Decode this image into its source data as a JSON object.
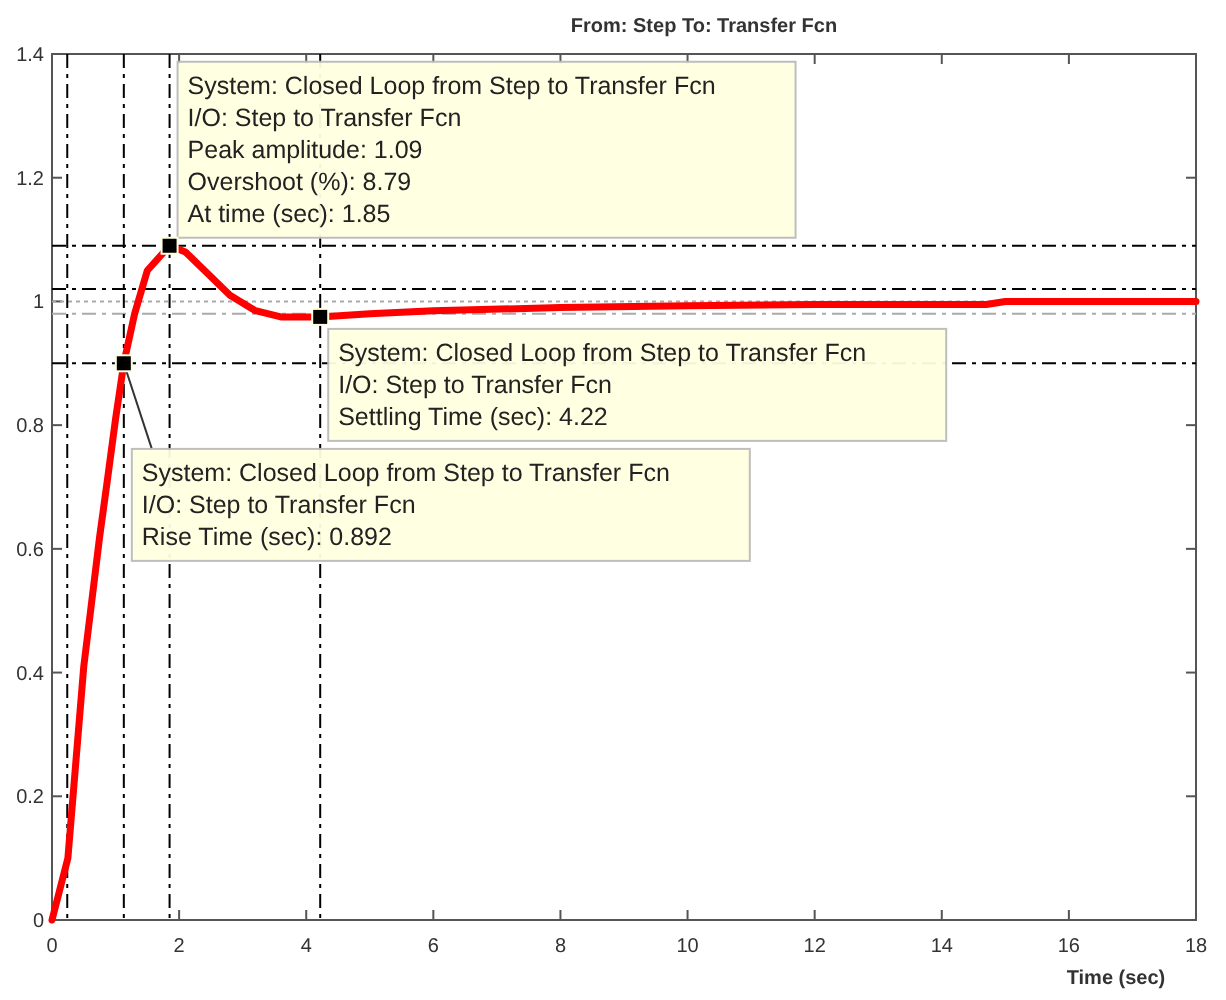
{
  "chart_data": {
    "type": "line",
    "title": "From: Step  To: Transfer Fcn",
    "xlabel": "Time (sec)",
    "series": [
      {
        "color": "#ff0000",
        "x": [
          0,
          0.25,
          0.5,
          0.75,
          0.87,
          1.0,
          1.13,
          1.3,
          1.5,
          1.85,
          2.1,
          2.4,
          2.8,
          3.2,
          3.6,
          4.22,
          5,
          6,
          8,
          10,
          12,
          14.7,
          15,
          18
        ],
        "values": [
          0,
          0.1,
          0.41,
          0.62,
          0.71,
          0.81,
          0.9,
          0.98,
          1.05,
          1.09,
          1.08,
          1.05,
          1.01,
          0.985,
          0.975,
          0.975,
          0.98,
          0.985,
          0.99,
          0.993,
          0.995,
          0.995,
          1.0,
          1.0
        ]
      }
    ],
    "xlim": [
      0,
      18
    ],
    "xticks": [
      0,
      2,
      4,
      6,
      8,
      10,
      12,
      14,
      16,
      18
    ],
    "ylim": [
      0,
      1.4
    ],
    "yticks": [
      0,
      0.2,
      0.4,
      0.6,
      0.8,
      1,
      1.2,
      1.4
    ],
    "grid": false,
    "ref_lines": [
      {
        "axis": "y",
        "value": 1.09,
        "line_style": "dashed",
        "color": "#000000"
      },
      {
        "axis": "y",
        "value": 1.02,
        "line_style": "dashed",
        "color": "#000000"
      },
      {
        "axis": "y",
        "value": 0.98,
        "line_style": "dashed",
        "color": "#aaaaaa"
      },
      {
        "axis": "y",
        "value": 1,
        "line_style": "dotted",
        "color": "#aaaaaa"
      },
      {
        "axis": "y",
        "value": 0.9,
        "line_style": "dashed",
        "color": "#000000"
      },
      {
        "axis": "x",
        "value": 0.24,
        "line_style": "dashed",
        "color": "#000000"
      },
      {
        "axis": "x",
        "value": 1.13,
        "line_style": "dashed",
        "color": "#000000"
      },
      {
        "axis": "x",
        "value": 1.85,
        "line_style": "dashed",
        "color": "#000000"
      },
      {
        "axis": "x",
        "value": 4.22,
        "line_style": "dashed",
        "color": "#000000"
      }
    ],
    "annotations": [
      {
        "text": "System: Closed Loop from Step to Transfer Fcn\nI/O: Step to Transfer Fcn\nPeak amplitude: 1.09\nOvershoot (%): 8.79\nAt time (sec): 1.85",
        "x": 1.85,
        "y": 1.09
      },
      {
        "text": "System: Closed Loop from Step to Transfer Fcn\nI/O: Step to Transfer Fcn\nSettling Time (sec): 4.22",
        "x": 4.22,
        "y": 0.975
      },
      {
        "text": "System: Closed Loop from Step to Transfer Fcn\nI/O: Step to Transfer Fcn\nRise Time (sec): 0.892",
        "x": 1.13,
        "y": 0.9
      }
    ]
  }
}
